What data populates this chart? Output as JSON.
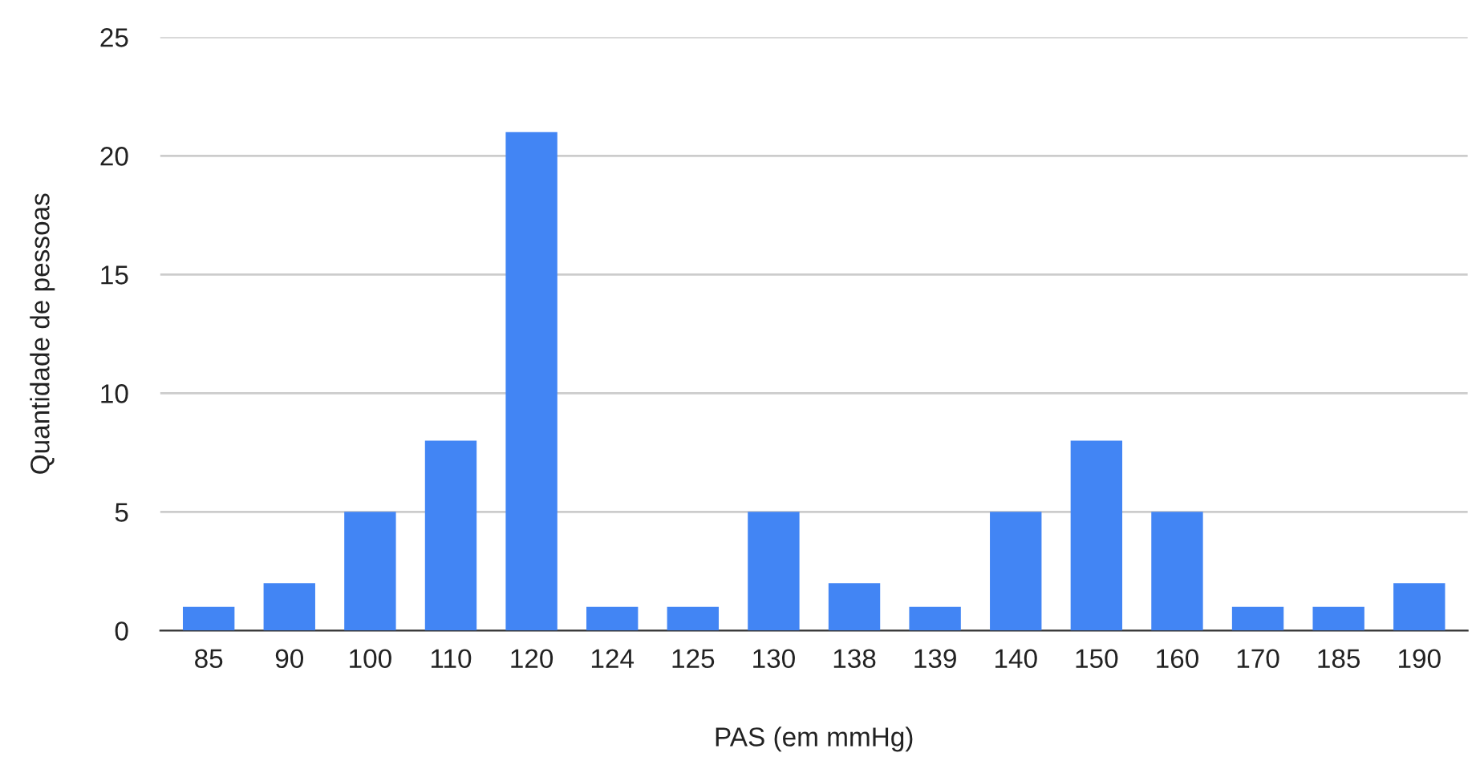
{
  "chart_data": {
    "type": "bar",
    "xlabel": "PAS (em mmHg)",
    "ylabel": "Quantidade de pessoas",
    "categories": [
      "85",
      "90",
      "100",
      "110",
      "120",
      "124",
      "125",
      "130",
      "138",
      "139",
      "140",
      "150",
      "160",
      "170",
      "185",
      "190"
    ],
    "values": [
      1,
      2,
      5,
      8,
      21,
      1,
      1,
      5,
      2,
      1,
      5,
      8,
      5,
      1,
      1,
      2
    ],
    "color": "#4285f4",
    "ylim": [
      0,
      25
    ],
    "yticks": [
      0,
      5,
      10,
      15,
      20,
      25
    ],
    "grid": "y",
    "legend": false
  }
}
